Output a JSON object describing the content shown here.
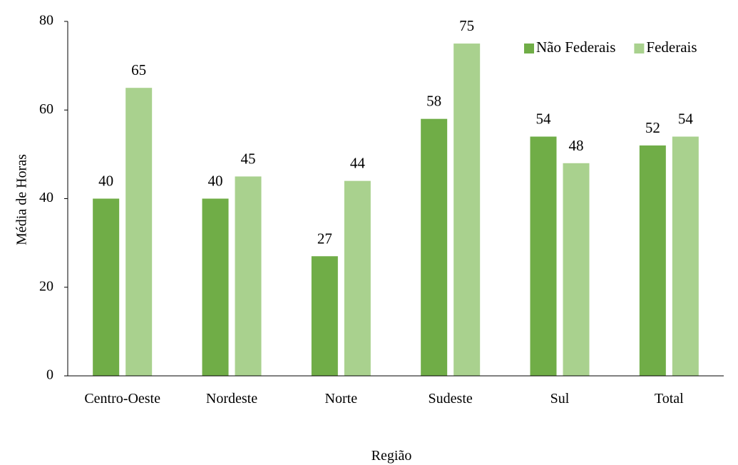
{
  "chart_data": {
    "type": "bar",
    "title": "",
    "xlabel": "Região",
    "ylabel": "Média de Horas",
    "ylim": [
      0,
      80
    ],
    "yticks": [
      0,
      20,
      40,
      60,
      80
    ],
    "grid": false,
    "legend_position": "top-right",
    "categories": [
      "Centro-Oeste",
      "Nordeste",
      "Norte",
      "Sudeste",
      "Sul",
      "Total"
    ],
    "series": [
      {
        "name": "Não Federais",
        "color": "#70ad47",
        "values": [
          40,
          40,
          27,
          58,
          54,
          52
        ]
      },
      {
        "name": "Federais",
        "color": "#a9d18e",
        "values": [
          65,
          45,
          44,
          75,
          48,
          54
        ]
      }
    ]
  }
}
